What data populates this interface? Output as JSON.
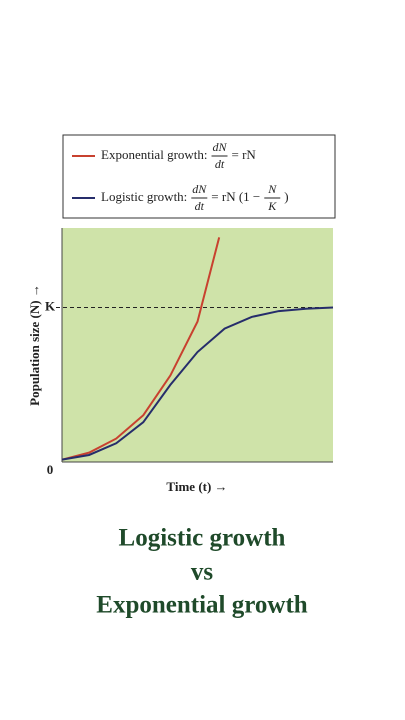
{
  "chart_data": {
    "type": "line",
    "xlabel": "Time (t) →",
    "ylabel": "Population size (N) →",
    "xlim": [
      0,
      100
    ],
    "ylim": [
      0,
      100
    ],
    "yticks": [
      0,
      {
        "value": 66,
        "label": "K"
      }
    ],
    "series": [
      {
        "name": "Exponential growth:",
        "color": "#c8412f",
        "formula": [
          "dN",
          "dt",
          "= rN"
        ],
        "x": [
          0,
          10,
          20,
          30,
          40,
          50,
          58
        ],
        "values": [
          1,
          4,
          10,
          20,
          37,
          60,
          96
        ]
      },
      {
        "name": "Logistic growth:",
        "color": "#262d6b",
        "formula": [
          "dN",
          "dt",
          "= rN (1 −",
          "N",
          "K",
          ")"
        ],
        "x": [
          0,
          10,
          20,
          30,
          40,
          50,
          60,
          70,
          80,
          90,
          100
        ],
        "values": [
          1,
          3,
          8,
          17,
          33,
          47,
          57,
          62,
          64.5,
          65.5,
          66
        ]
      }
    ],
    "caption": [
      "Logistic growth",
      "vs",
      "Exponential growth"
    ]
  }
}
